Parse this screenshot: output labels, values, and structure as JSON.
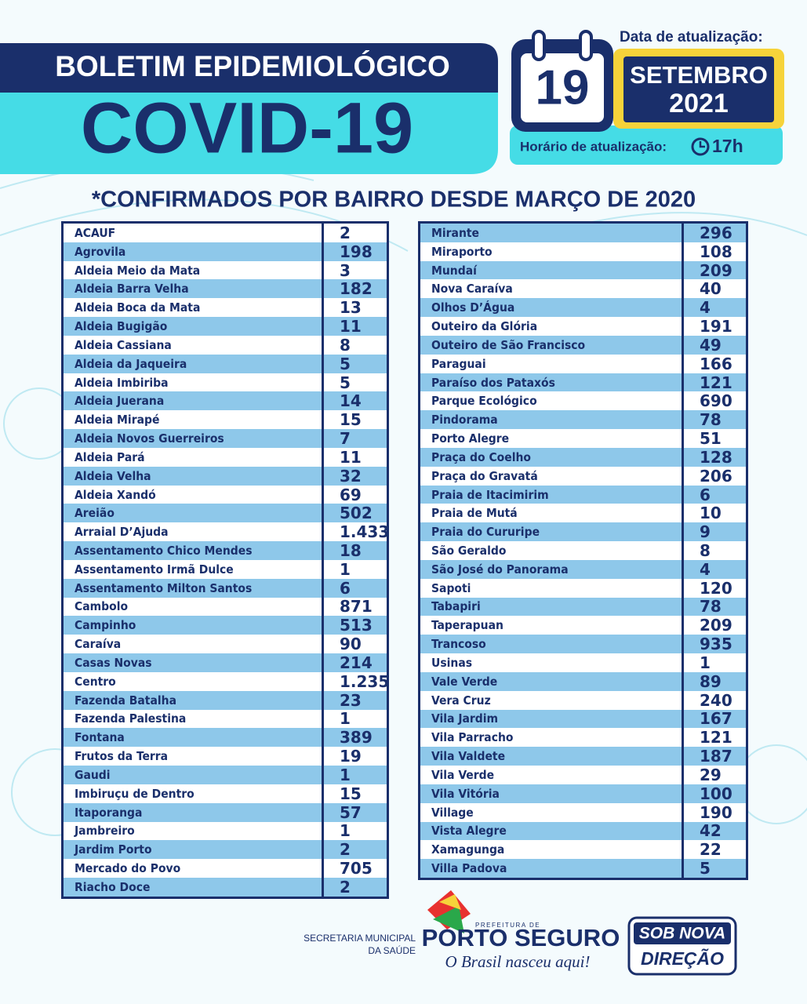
{
  "header": {
    "title": "BOLETIM EPIDEMIOLÓGICO",
    "subtitle": "COVID-19"
  },
  "update": {
    "date_label": "Data de atualização:",
    "day": "19",
    "month": "SETEMBRO",
    "year": "2021",
    "time_label": "Horário de atualização:",
    "time": "17h"
  },
  "heading": "*CONFIRMADOS POR BAIRRO DESDE MARÇO DE 2020",
  "tables": [
    {
      "rows": [
        [
          "ACAUF",
          2
        ],
        [
          "Agrovila",
          198
        ],
        [
          "Aldeia Meio da Mata",
          3
        ],
        [
          "Aldeia Barra Velha",
          182
        ],
        [
          "Aldeia Boca da Mata",
          13
        ],
        [
          "Aldeia Bugigão",
          11
        ],
        [
          "Aldeia Cassiana",
          8
        ],
        [
          "Aldeia da Jaqueira",
          5
        ],
        [
          "Aldeia Imbiriba",
          5
        ],
        [
          "Aldeia Juerana",
          14
        ],
        [
          "Aldeia Mirapé",
          15
        ],
        [
          "Aldeia Novos Guerreiros",
          7
        ],
        [
          "Aldeia Pará",
          11
        ],
        [
          "Aldeia Velha",
          32
        ],
        [
          "Aldeia Xandó",
          69
        ],
        [
          "Areião",
          502
        ],
        [
          "Arraial D’Ajuda",
          "1.433"
        ],
        [
          "Assentamento Chico Mendes",
          18
        ],
        [
          "Assentamento Irmã Dulce",
          1
        ],
        [
          "Assentamento Milton Santos",
          6
        ],
        [
          "Cambolo",
          871
        ],
        [
          "Campinho",
          513
        ],
        [
          "Caraíva",
          90
        ],
        [
          "Casas Novas",
          214
        ],
        [
          "Centro",
          "1.235"
        ],
        [
          "Fazenda Batalha",
          23
        ],
        [
          "Fazenda Palestina",
          1
        ],
        [
          "Fontana",
          389
        ],
        [
          "Frutos da Terra",
          19
        ],
        [
          "Gaudi",
          1
        ],
        [
          "Imbiruçu de Dentro",
          15
        ],
        [
          "Itaporanga",
          57
        ],
        [
          "Jambreiro",
          1
        ],
        [
          "Jardim Porto",
          2
        ],
        [
          "Mercado do Povo",
          705
        ],
        [
          "Riacho Doce",
          2
        ]
      ]
    },
    {
      "rows": [
        [
          "Mirante",
          296
        ],
        [
          "Miraporto",
          108
        ],
        [
          "Mundaí",
          209
        ],
        [
          "Nova Caraíva",
          40
        ],
        [
          "Olhos D’Água",
          4
        ],
        [
          "Outeiro da Glória",
          191
        ],
        [
          "Outeiro de São Francisco",
          49
        ],
        [
          "Paraguai",
          166
        ],
        [
          "Paraíso dos Pataxós",
          121
        ],
        [
          "Parque Ecológico",
          690
        ],
        [
          "Pindorama",
          78
        ],
        [
          "Porto Alegre",
          51
        ],
        [
          "Praça do Coelho",
          128
        ],
        [
          "Praça do Gravatá",
          206
        ],
        [
          "Praia de Itacimirim",
          6
        ],
        [
          "Praia de Mutá",
          10
        ],
        [
          "Praia do Cururipe",
          9
        ],
        [
          "São Geraldo",
          8
        ],
        [
          "São José do Panorama",
          4
        ],
        [
          "Sapoti",
          120
        ],
        [
          "Tabapiri",
          78
        ],
        [
          "Taperapuan",
          209
        ],
        [
          "Trancoso",
          935
        ],
        [
          "Usinas",
          1
        ],
        [
          "Vale Verde",
          89
        ],
        [
          "Vera Cruz",
          240
        ],
        [
          "Vila Jardim",
          167
        ],
        [
          "Vila Parracho",
          121
        ],
        [
          "Vila Valdete",
          187
        ],
        [
          "Vila Verde",
          29
        ],
        [
          "Vila Vitória",
          100
        ],
        [
          "Village",
          190
        ],
        [
          "Vista Alegre",
          42
        ],
        [
          "Xamagunga",
          22
        ],
        [
          "Villa Padova",
          5
        ]
      ]
    }
  ],
  "footer": {
    "secretaria": [
      "SECRETARIA MUNICIPAL",
      "DA SAÚDE"
    ],
    "prefeitura": "PREFEITURA DE",
    "city": "PORTO SEGURO",
    "slogan": "O Brasil nasceu aqui!",
    "badge": [
      "SOB NOVA",
      "DIREÇÃO"
    ]
  }
}
